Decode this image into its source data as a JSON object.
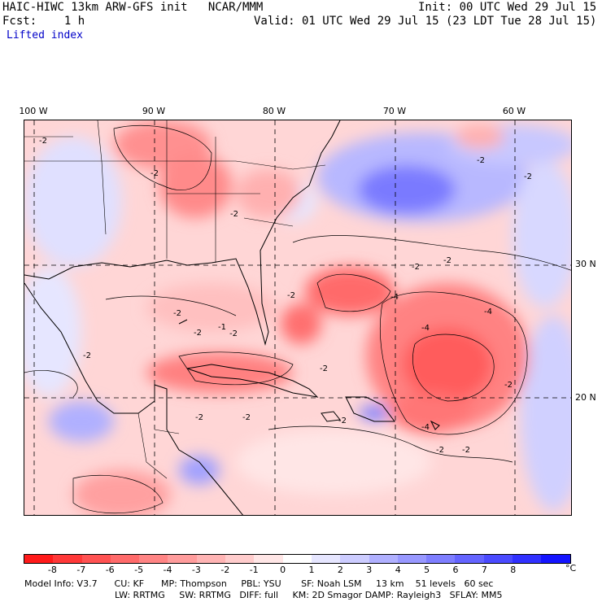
{
  "header": {
    "left_line1": "HAIC-HIWC 13km ARW-GFS init   NCAR/MMM",
    "init": "Init: 00 UTC Wed 29 Jul 15",
    "fcst": "Fcst:    1 h",
    "valid": "Valid: 01 UTC Wed 29 Jul 15 (23 LDT Tue 28 Jul 15)",
    "field": "Lifted index"
  },
  "map": {
    "lon_labels": [
      "100 W",
      "90 W",
      "80 W",
      "70 W",
      "60 W"
    ],
    "lat_labels": [
      "30 N",
      "20 N"
    ],
    "contour_labels": [
      "-2",
      "-2",
      "-2",
      "-2",
      "-2",
      "-2",
      "-2",
      "-2",
      "-4",
      "-4",
      "-4",
      "-2",
      "-2",
      "-1",
      "-2",
      "-2",
      "-2",
      "-2",
      "-2",
      "-2",
      "-2",
      "-4",
      "-2",
      "-2"
    ]
  },
  "colorbar": {
    "unit": "°C",
    "labels": [
      "-8",
      "-7",
      "-6",
      "-5",
      "-4",
      "-3",
      "-2",
      "-1",
      "0",
      "1",
      "2",
      "3",
      "4",
      "5",
      "6",
      "7",
      "8"
    ],
    "colors": [
      "#ff1a1a",
      "#ff3838",
      "#ff5252",
      "#ff6a6a",
      "#ff8484",
      "#ff9c9c",
      "#ffb4b4",
      "#ffcccc",
      "#ffe6e6",
      "#ffffff",
      "#e6e6ff",
      "#ccccff",
      "#b0b0ff",
      "#9898ff",
      "#7e7eff",
      "#6464ff",
      "#4a4aff",
      "#3030ff",
      "#1414ff"
    ]
  },
  "footer": {
    "line1": "Model Info: V3.7      CU: KF      MP: Thompson     PBL: YSU       SF: Noah LSM     13 km    51 levels   60 sec",
    "line2": "LW: RRTMG     SW: RRTMG   DIFF: full     KM: 2D Smagor DAMP: Rayleigh3   SFLAY: MM5"
  }
}
